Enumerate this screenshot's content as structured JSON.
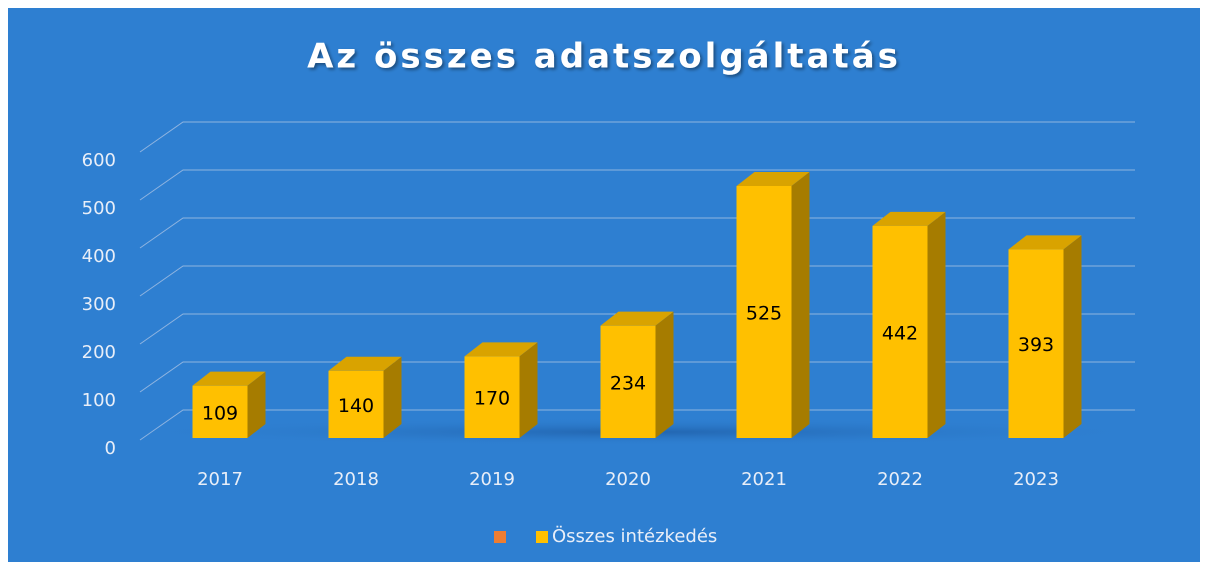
{
  "chart_data": {
    "type": "bar3d",
    "title": "Az összes adatszolgáltatás",
    "categories": [
      "2017",
      "2018",
      "2019",
      "2020",
      "2021",
      "2022",
      "2023"
    ],
    "series": [
      {
        "name": "Összes intézkedés",
        "color": "#ffc000",
        "values": [
          109,
          140,
          170,
          234,
          525,
          442,
          393
        ]
      }
    ],
    "ylim": [
      0,
      600
    ],
    "yticks": [
      0,
      100,
      200,
      300,
      400,
      500,
      600
    ],
    "grid": true,
    "legend": "bottom"
  }
}
